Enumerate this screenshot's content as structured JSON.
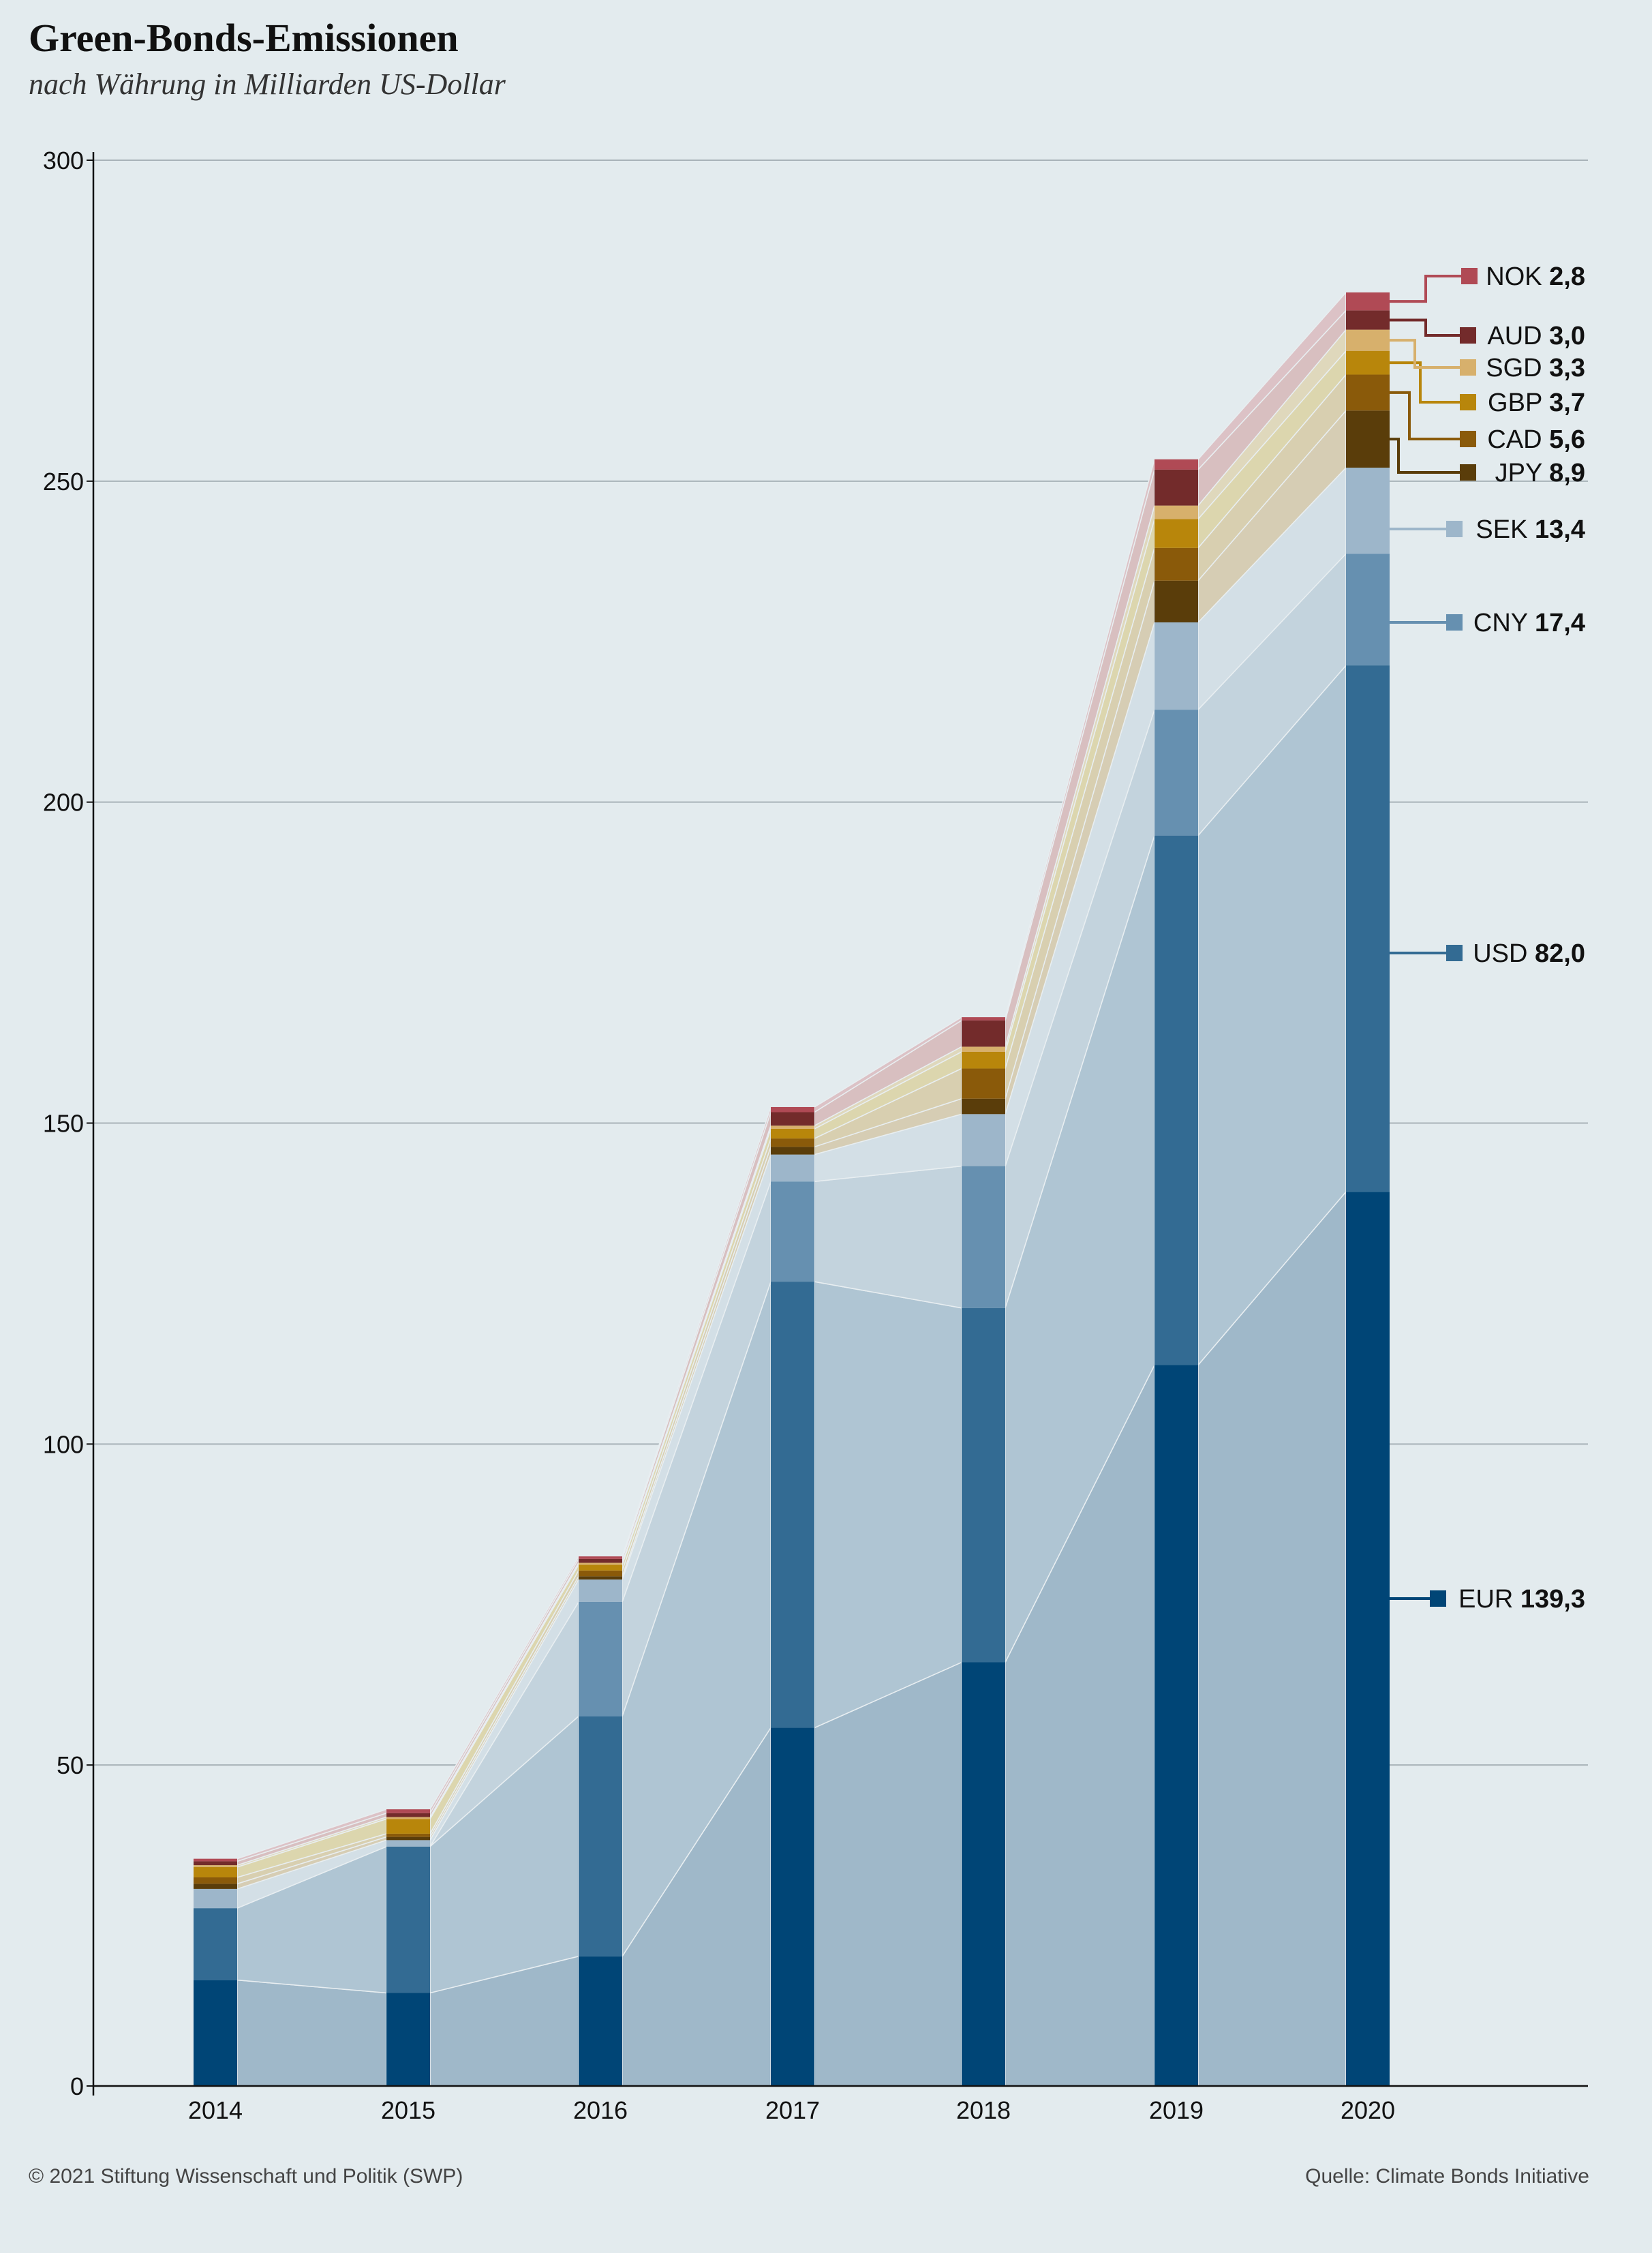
{
  "header": {
    "title": "Green-Bonds-Emissionen",
    "subtitle": "nach Währung in Milliarden US-Dollar"
  },
  "footer": {
    "copyright": "© 2021 Stiftung Wissenschaft und Politik (SWP)",
    "source": "Quelle: Climate Bonds Initiative"
  },
  "chart_data": {
    "type": "bar",
    "stacked": true,
    "title": "Green-Bonds-Emissionen",
    "subtitle": "nach Währung in Milliarden US-Dollar",
    "xlabel": "",
    "ylabel": "",
    "ylim": [
      0,
      300
    ],
    "yticks": [
      "0",
      "50",
      "100",
      "150",
      "200",
      "250",
      "300"
    ],
    "grid": true,
    "legend_placement": "right (labels at 2020 bar)",
    "categories": [
      "2014",
      "2015",
      "2016",
      "2017",
      "2018",
      "2019",
      "2020"
    ],
    "series": [
      {
        "name": "EUR",
        "label_value": "139,3",
        "color": "#004576",
        "band_color": "#9fb8c9",
        "values": [
          16.5,
          14.5,
          20.2,
          55.8,
          66.0,
          112.3,
          139.3
        ]
      },
      {
        "name": "USD",
        "label_value": "82,0",
        "color": "#336b93",
        "band_color": "#afc5d3",
        "values": [
          11.2,
          22.8,
          37.4,
          69.5,
          55.2,
          82.5,
          82.0
        ]
      },
      {
        "name": "CNY",
        "label_value": "17,4",
        "color": "#6690b0",
        "band_color": "#c3d3dd",
        "values": [
          0,
          0,
          17.8,
          15.6,
          22.1,
          19.6,
          17.4
        ]
      },
      {
        "name": "SEK",
        "label_value": "13,4",
        "color": "#9db6ca",
        "band_color": "#d3dfe6",
        "values": [
          3.0,
          1.0,
          3.5,
          4.2,
          8.1,
          13.6,
          13.4
        ]
      },
      {
        "name": "JPY",
        "label_value": "8,9",
        "color": "#5a3d0a",
        "band_color": "#d6cdb4",
        "values": [
          0.8,
          0.5,
          0.5,
          1.2,
          2.4,
          6.5,
          8.9
        ]
      },
      {
        "name": "CAD",
        "label_value": "5,6",
        "color": "#8a5a0a",
        "band_color": "#d8cfb0",
        "values": [
          1.0,
          0.5,
          0.9,
          1.3,
          4.7,
          5.1,
          5.6
        ]
      },
      {
        "name": "GBP",
        "label_value": "3,7",
        "color": "#b8860b",
        "band_color": "#dcd6ae",
        "values": [
          1.6,
          2.3,
          0.9,
          1.5,
          2.6,
          4.5,
          3.7
        ]
      },
      {
        "name": "SGD",
        "label_value": "3,3",
        "color": "#d7b06c",
        "band_color": "#dfd8bc",
        "values": [
          0.3,
          0.3,
          0.3,
          0.5,
          0.8,
          2.1,
          3.3
        ]
      },
      {
        "name": "AUD",
        "label_value": "3,0",
        "color": "#732b2b",
        "band_color": "#d8bfc0",
        "values": [
          0.6,
          0.6,
          0.6,
          2.1,
          4.1,
          5.6,
          3.0
        ]
      },
      {
        "name": "NOK",
        "label_value": "2,8",
        "color": "#b04a55",
        "band_color": "#dcc2c6",
        "values": [
          0.4,
          0.6,
          0.4,
          0.8,
          0.5,
          1.6,
          2.8
        ]
      }
    ]
  }
}
